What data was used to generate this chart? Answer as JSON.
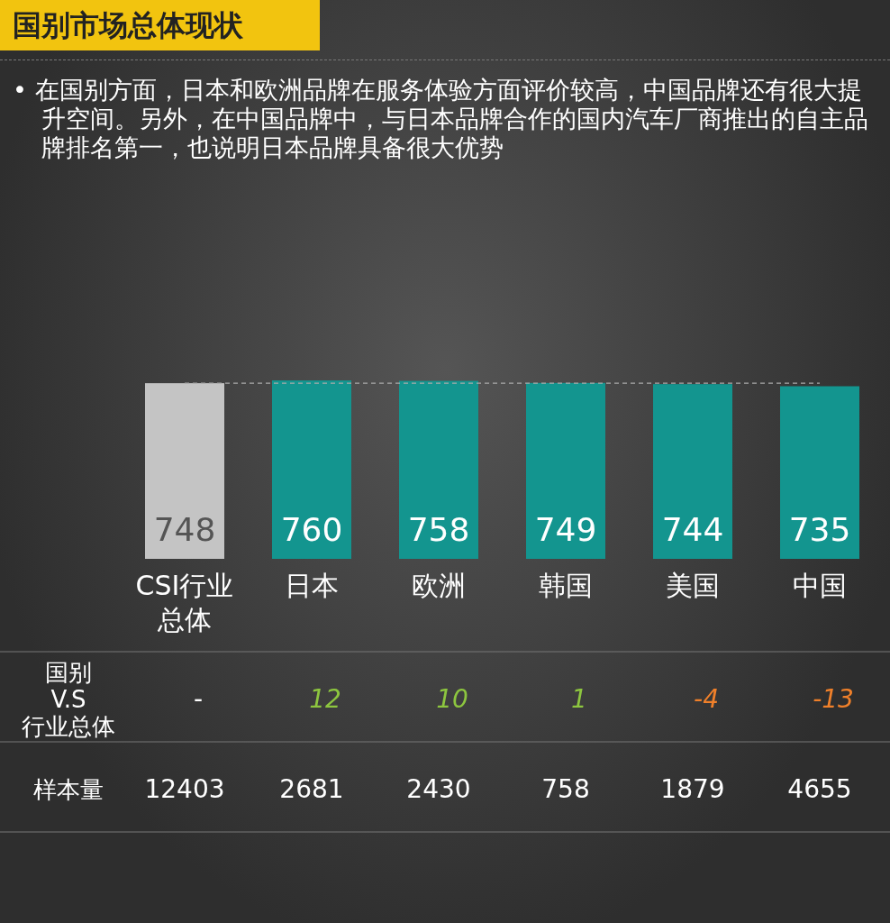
{
  "chart_data": {
    "type": "bar",
    "title": "国别市场总体现状",
    "subtitle": "• 在国别方面，日本和欧洲品牌在服务体验方面评价较高，中国品牌还有很大提升空间。另外，在中国品牌中，与日本品牌合作的国内汽车厂商推出的自主品牌排名第一，也说明日本品牌具备很大优势",
    "categories": [
      "CSI行业总体",
      "日本",
      "欧洲",
      "韩国",
      "美国",
      "中国"
    ],
    "values": [
      748,
      760,
      758,
      749,
      744,
      735
    ],
    "colors": [
      "#c4c4c4",
      "#13958f",
      "#13958f",
      "#13958f",
      "#13958f",
      "#13958f"
    ],
    "data_labels": true,
    "ref_lines": [
      {
        "axis": "y",
        "value": 748,
        "color": "#aaaaaa",
        "line_style": "dashed"
      }
    ],
    "annotations": [
      "国别\nV.S\n行业总体",
      "-",
      "12",
      "10",
      "1",
      "-4",
      "-13",
      "样本量",
      "12403",
      "2681",
      "2430",
      "758",
      "1879",
      "4655"
    ]
  }
}
